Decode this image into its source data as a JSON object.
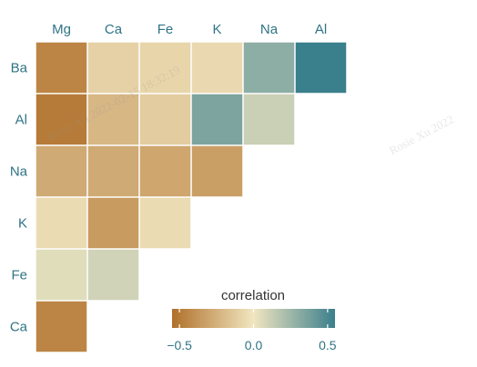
{
  "chart_data": {
    "type": "heatmap",
    "columns": [
      "Mg",
      "Ca",
      "Fe",
      "K",
      "Na",
      "Al"
    ],
    "rows": [
      "Ba",
      "Al",
      "Na",
      "K",
      "Fe",
      "Ca"
    ],
    "values": [
      [
        -0.45,
        -0.1,
        -0.08,
        -0.06,
        0.3,
        0.55
      ],
      [
        -0.5,
        -0.22,
        -0.12,
        0.35,
        0.12,
        null
      ],
      [
        -0.28,
        -0.28,
        -0.3,
        -0.33,
        null,
        null
      ],
      [
        -0.05,
        -0.35,
        -0.05,
        null,
        null,
        null
      ],
      [
        0.05,
        0.1,
        null,
        null,
        null,
        null
      ],
      [
        -0.45,
        null,
        null,
        null,
        null,
        null
      ]
    ],
    "legend": {
      "title": "correlation",
      "ticks": [
        -0.5,
        0.0,
        0.5
      ],
      "tick_labels": [
        "−0.5",
        "0.0",
        "0.5"
      ],
      "range": [
        -0.55,
        0.55
      ],
      "placement": "bottom-right"
    },
    "colors": {
      "negative": "#b0702a",
      "neutral": "#f1e6c0",
      "positive": "#3a7f8c",
      "label": "#2f7385",
      "text": "#333333",
      "watermark": "rgba(150,150,150,0.22)"
    }
  },
  "watermarks": [
    "Rosie Xu 2022-02-15 18:32:19",
    "Rosie Xu 2022"
  ]
}
